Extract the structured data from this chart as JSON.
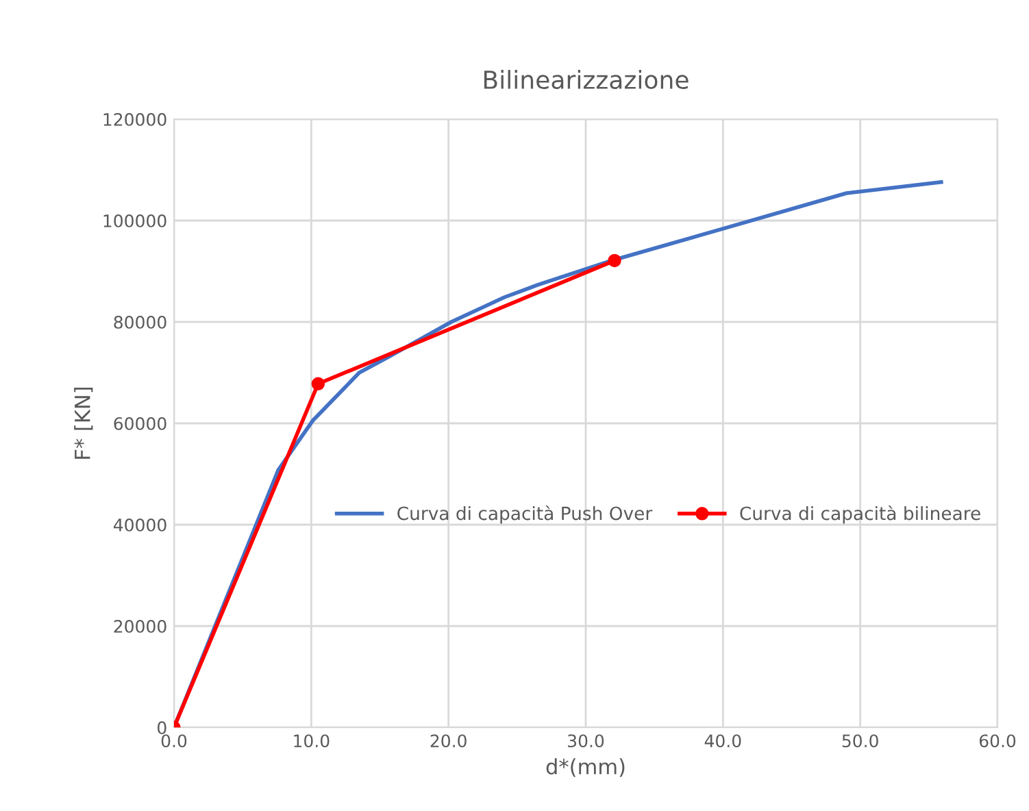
{
  "chart_data": {
    "type": "line",
    "title": "Bilinearizzazione",
    "xlabel": "d*(mm)",
    "ylabel": "F* [KN]",
    "series": [
      {
        "name": "Curva di capacità Push Over",
        "color": "#4472c4",
        "marker": "none",
        "x": [
          0,
          7.6,
          10.1,
          13.5,
          15.7,
          20.2,
          24.1,
          26.5,
          32.0,
          40.0,
          49.0,
          55.9
        ],
        "values": [
          0,
          50800,
          60500,
          70000,
          73200,
          80000,
          84900,
          87300,
          92200,
          98400,
          105400,
          107600
        ]
      },
      {
        "name": "Curva di capacità bilineare",
        "color": "#ff0000",
        "marker": "circle",
        "x": [
          0,
          10.5,
          32.1
        ],
        "values": [
          0,
          67800,
          92100
        ]
      }
    ],
    "xlim": [
      0,
      60
    ],
    "xticks": [
      {
        "value": 0,
        "label": "0.0"
      },
      {
        "value": 10,
        "label": "10.0"
      },
      {
        "value": 20,
        "label": "20.0"
      },
      {
        "value": 30,
        "label": "30.0"
      },
      {
        "value": 40,
        "label": "40.0"
      },
      {
        "value": 50,
        "label": "50.0"
      },
      {
        "value": 60,
        "label": "60.0"
      }
    ],
    "ylim": [
      0,
      120000
    ],
    "yticks": [
      0,
      20000,
      40000,
      60000,
      80000,
      100000,
      120000
    ],
    "grid": true,
    "legend": "right"
  }
}
